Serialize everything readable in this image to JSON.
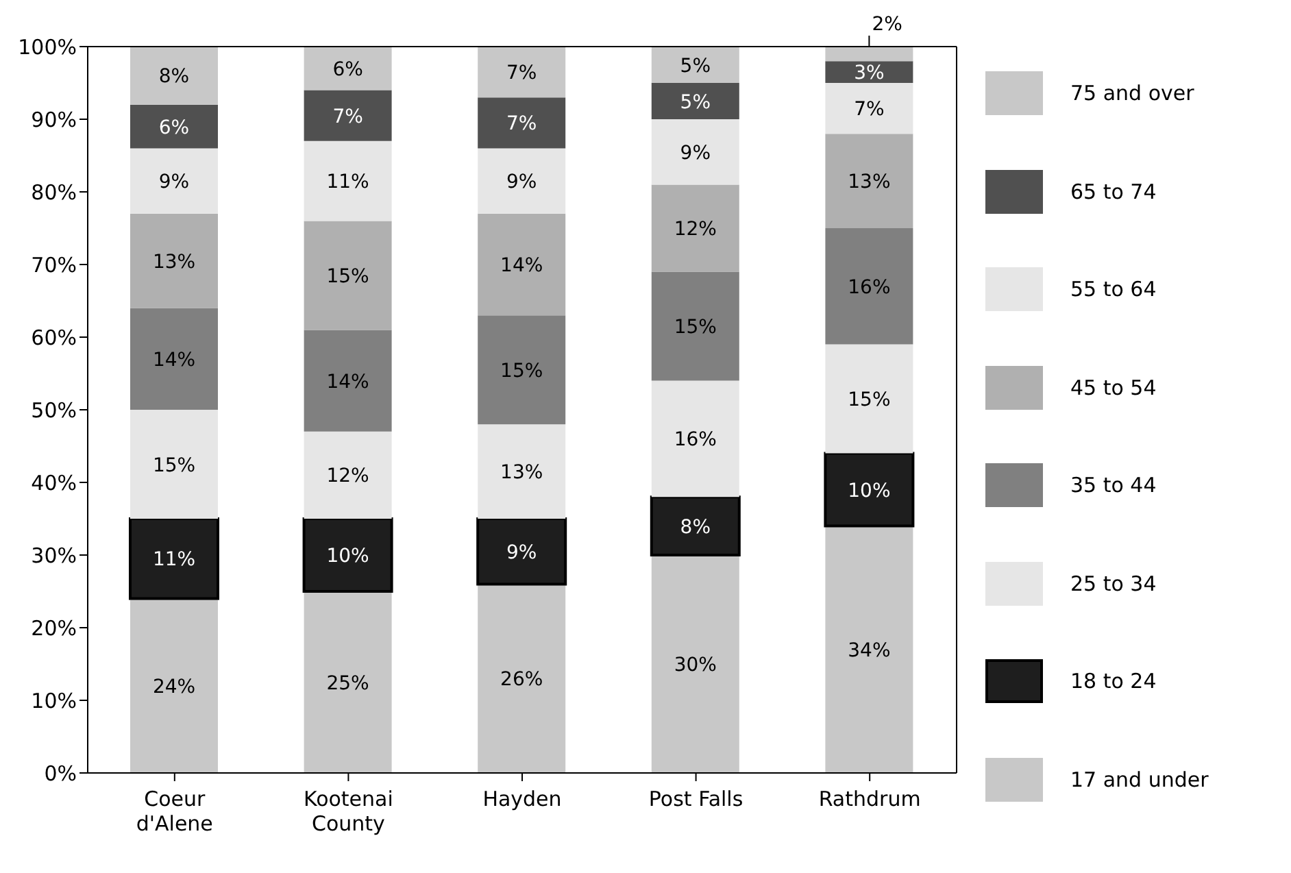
{
  "chart_data": {
    "type": "bar",
    "stacked": true,
    "categories": [
      "Coeur d'Alene",
      "Kootenai County",
      "Hayden",
      "Post Falls",
      "Rathdrum"
    ],
    "ylim": [
      0,
      100
    ],
    "yticks": [
      {
        "value": 0,
        "label": "0%"
      },
      {
        "value": 10,
        "label": "10%"
      },
      {
        "value": 20,
        "label": "20%"
      },
      {
        "value": 30,
        "label": "30%"
      },
      {
        "value": 40,
        "label": "40%"
      },
      {
        "value": 50,
        "label": "50%"
      },
      {
        "value": 60,
        "label": "60%"
      },
      {
        "value": 70,
        "label": "70%"
      },
      {
        "value": 80,
        "label": "80%"
      },
      {
        "value": 90,
        "label": "90%"
      },
      {
        "value": 100,
        "label": "100%"
      }
    ],
    "grid": false,
    "legend": "right",
    "series": [
      {
        "name": "17 and under",
        "color": "#c8c8c8",
        "values": [
          24,
          25,
          26,
          30,
          34
        ],
        "value_labels": [
          "24%",
          "25%",
          "26%",
          "30%",
          "34%"
        ]
      },
      {
        "name": "18 to 24",
        "color": "#1e1e1e",
        "values": [
          11,
          10,
          9,
          8,
          10
        ],
        "value_labels": [
          "11%",
          "10%",
          "9%",
          "8%",
          "10%"
        ]
      },
      {
        "name": "25 to 34",
        "color": "#e6e6e6",
        "values": [
          15,
          12,
          13,
          16,
          15
        ],
        "value_labels": [
          "15%",
          "12%",
          "13%",
          "16%",
          "15%"
        ]
      },
      {
        "name": "35 to 44",
        "color": "#808080",
        "values": [
          14,
          14,
          15,
          15,
          16
        ],
        "value_labels": [
          "14%",
          "14%",
          "15%",
          "15%",
          "16%"
        ]
      },
      {
        "name": "45 to 54",
        "color": "#b0b0b0",
        "values": [
          13,
          15,
          14,
          12,
          13
        ],
        "value_labels": [
          "13%",
          "15%",
          "14%",
          "12%",
          "13%"
        ]
      },
      {
        "name": "55 to 64",
        "color": "#e6e6e6",
        "values": [
          9,
          11,
          9,
          9,
          7
        ],
        "value_labels": [
          "9%",
          "11%",
          "9%",
          "9%",
          "7%"
        ]
      },
      {
        "name": "65 to 74",
        "color": "#505050",
        "values": [
          6,
          7,
          7,
          5,
          3
        ],
        "value_labels": [
          "6%",
          "7%",
          "7%",
          "5%",
          "3%"
        ]
      },
      {
        "name": "75 and over",
        "color": "#c8c8c8",
        "values": [
          8,
          6,
          7,
          5,
          2
        ],
        "value_labels": [
          "8%",
          "6%",
          "7%",
          "5%",
          "2%"
        ]
      }
    ]
  }
}
